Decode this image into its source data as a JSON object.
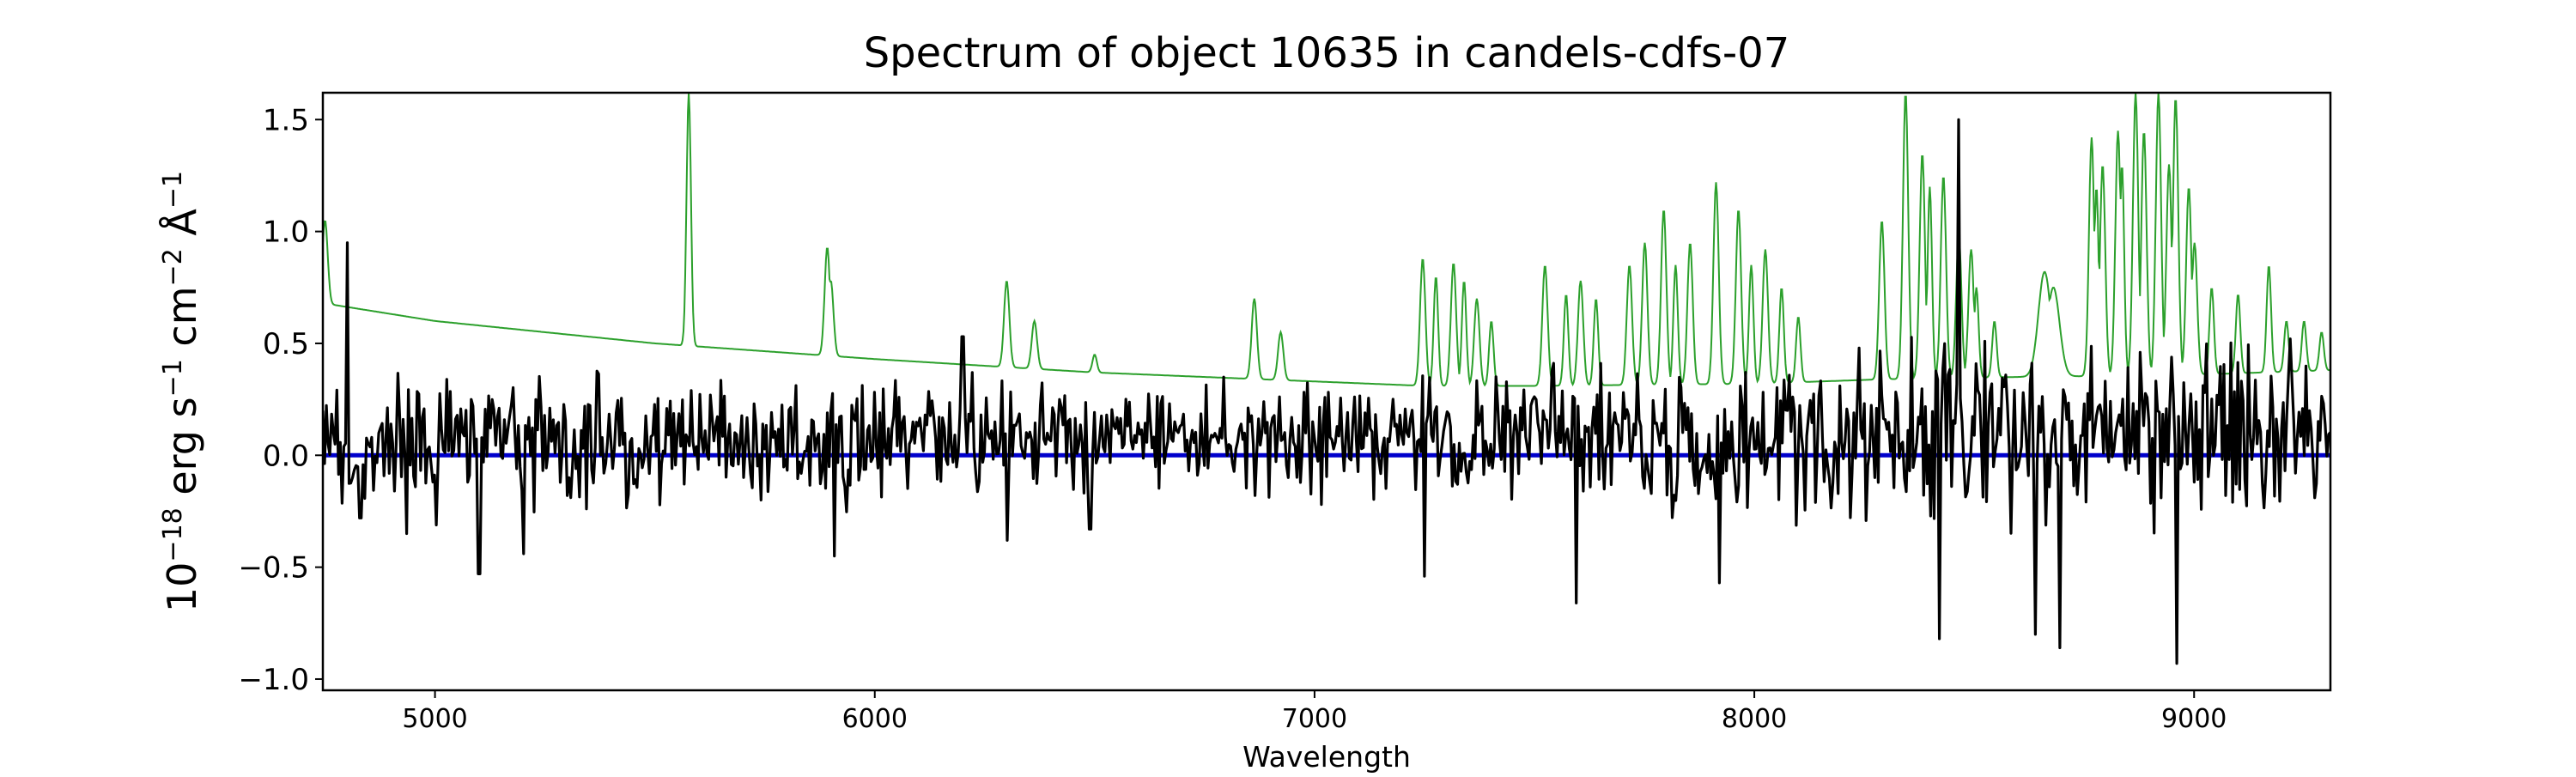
{
  "chart_data": {
    "type": "line",
    "title": "Spectrum of object 10635 in candels-cdfs-07",
    "xlabel": "Wavelength",
    "ylabel_parts": {
      "p1": "10",
      "e1": "−18",
      "p2": " erg s",
      "e2": "−1",
      "p3": " cm",
      "e3": "−2",
      "p4": " Å",
      "e4": "−1"
    },
    "xlim": [
      4745,
      9310
    ],
    "ylim": [
      -1.05,
      1.62
    ],
    "x_ticks": [
      5000,
      6000,
      7000,
      8000,
      9000
    ],
    "x_tick_labels": [
      "5000",
      "6000",
      "7000",
      "8000",
      "9000"
    ],
    "y_ticks": [
      -1.0,
      -0.5,
      0.0,
      0.5,
      1.0,
      1.5
    ],
    "y_tick_labels": [
      "−1.0",
      "−0.5",
      "0.0",
      "0.5",
      "1.0",
      "1.5"
    ],
    "grid": false,
    "legend": "none",
    "series": [
      {
        "role": "noise",
        "color": "#2ca02c",
        "continuum": [
          [
            4745,
            0.68
          ],
          [
            5000,
            0.6
          ],
          [
            5500,
            0.5
          ],
          [
            6000,
            0.43
          ],
          [
            6500,
            0.37
          ],
          [
            7000,
            0.33
          ],
          [
            7250,
            0.31
          ],
          [
            7500,
            0.31
          ],
          [
            8000,
            0.32
          ],
          [
            8300,
            0.34
          ],
          [
            8600,
            0.35
          ],
          [
            9000,
            0.36
          ],
          [
            9310,
            0.38
          ]
        ],
        "peaks": [
          [
            4750,
            1.05,
            6
          ],
          [
            5577,
            1.62,
            5
          ],
          [
            5892,
            0.93,
            6
          ],
          [
            5900,
            0.78,
            6
          ],
          [
            6300,
            0.78,
            6
          ],
          [
            6363,
            0.6,
            6
          ],
          [
            6500,
            0.45,
            5
          ],
          [
            6863,
            0.7,
            6
          ],
          [
            6923,
            0.55,
            6
          ],
          [
            7246,
            0.88,
            6
          ],
          [
            7276,
            0.8,
            5
          ],
          [
            7316,
            0.86,
            6
          ],
          [
            7340,
            0.78,
            5
          ],
          [
            7369,
            0.7,
            6
          ],
          [
            7402,
            0.6,
            5
          ],
          [
            7524,
            0.85,
            6
          ],
          [
            7572,
            0.72,
            5
          ],
          [
            7605,
            0.78,
            6
          ],
          [
            7640,
            0.7,
            5
          ],
          [
            7716,
            0.85,
            6
          ],
          [
            7751,
            0.95,
            6
          ],
          [
            7794,
            1.1,
            6
          ],
          [
            7821,
            0.85,
            5
          ],
          [
            7854,
            0.95,
            6
          ],
          [
            7913,
            1.22,
            6
          ],
          [
            7964,
            1.1,
            6
          ],
          [
            7993,
            0.85,
            5
          ],
          [
            8025,
            0.92,
            6
          ],
          [
            8062,
            0.75,
            5
          ],
          [
            8100,
            0.62,
            5
          ],
          [
            8290,
            1.05,
            6
          ],
          [
            8344,
            1.62,
            6
          ],
          [
            8382,
            1.35,
            6
          ],
          [
            8399,
            1.2,
            5
          ],
          [
            8430,
            1.25,
            6
          ],
          [
            8465,
            0.98,
            6
          ],
          [
            8493,
            0.92,
            6
          ],
          [
            8505,
            0.75,
            5
          ],
          [
            8546,
            0.6,
            5
          ],
          [
            8660,
            0.82,
            14
          ],
          [
            8680,
            0.75,
            14
          ],
          [
            8767,
            1.42,
            6
          ],
          [
            8778,
            1.2,
            5
          ],
          [
            8792,
            1.3,
            6
          ],
          [
            8827,
            1.45,
            6
          ],
          [
            8836,
            1.3,
            5
          ],
          [
            8867,
            1.62,
            6
          ],
          [
            8886,
            1.45,
            6
          ],
          [
            8919,
            1.62,
            6
          ],
          [
            8943,
            1.3,
            6
          ],
          [
            8958,
            1.6,
            6
          ],
          [
            8988,
            1.2,
            6
          ],
          [
            9001,
            0.95,
            6
          ],
          [
            9040,
            0.75,
            5
          ],
          [
            9100,
            0.72,
            5
          ],
          [
            9170,
            0.85,
            5
          ],
          [
            9210,
            0.6,
            5
          ],
          [
            9250,
            0.6,
            5
          ],
          [
            9290,
            0.55,
            5
          ]
        ]
      },
      {
        "role": "flux",
        "color": "#000000",
        "seed": 10635,
        "noise_steps": 1150,
        "noise_knots": [
          [
            4745,
            0.2
          ],
          [
            5000,
            0.2
          ],
          [
            6000,
            0.17
          ],
          [
            7000,
            0.16
          ],
          [
            8000,
            0.22
          ],
          [
            8500,
            0.28
          ],
          [
            9000,
            0.3
          ],
          [
            9310,
            0.26
          ]
        ],
        "features": [
          [
            4800,
            0.95
          ],
          [
            4830,
            -0.28
          ],
          [
            4935,
            -0.35
          ],
          [
            5100,
            -0.53
          ],
          [
            5200,
            -0.44
          ],
          [
            5740,
            -0.2
          ],
          [
            5908,
            -0.45
          ],
          [
            6200,
            0.53
          ],
          [
            6300,
            -0.38
          ],
          [
            6490,
            -0.33
          ],
          [
            7250,
            -0.54
          ],
          [
            7595,
            -0.66
          ],
          [
            7920,
            -0.57
          ],
          [
            8420,
            -0.82
          ],
          [
            8465,
            1.5
          ],
          [
            8638,
            -0.8
          ],
          [
            8695,
            -0.86
          ],
          [
            8960,
            -0.93
          ],
          [
            9220,
            0.52
          ]
        ]
      },
      {
        "role": "zero",
        "color": "#0000cc",
        "y": 0.0
      }
    ]
  }
}
